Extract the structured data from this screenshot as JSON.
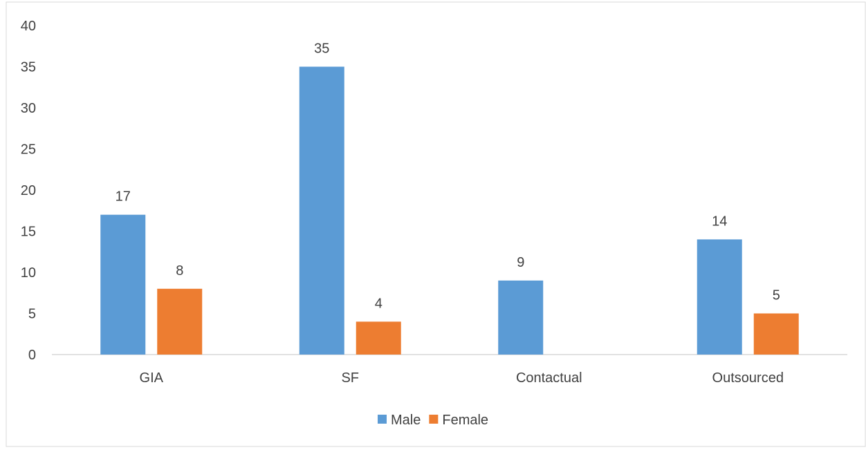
{
  "chart_data": {
    "type": "bar",
    "categories": [
      "GIA",
      "SF",
      "Contactual",
      "Outsourced"
    ],
    "series": [
      {
        "name": "Male",
        "values": [
          17,
          35,
          9,
          14
        ],
        "color": "#5B9BD5"
      },
      {
        "name": "Female",
        "values": [
          8,
          4,
          null,
          5
        ],
        "color": "#ED7D31"
      }
    ],
    "ylim": [
      0,
      40
    ],
    "yticks": [
      0,
      5,
      10,
      15,
      20,
      25,
      30,
      35,
      40
    ],
    "grid": false,
    "legend_position": "bottom",
    "data_labels": true,
    "title": "",
    "xlabel": "",
    "ylabel": ""
  }
}
